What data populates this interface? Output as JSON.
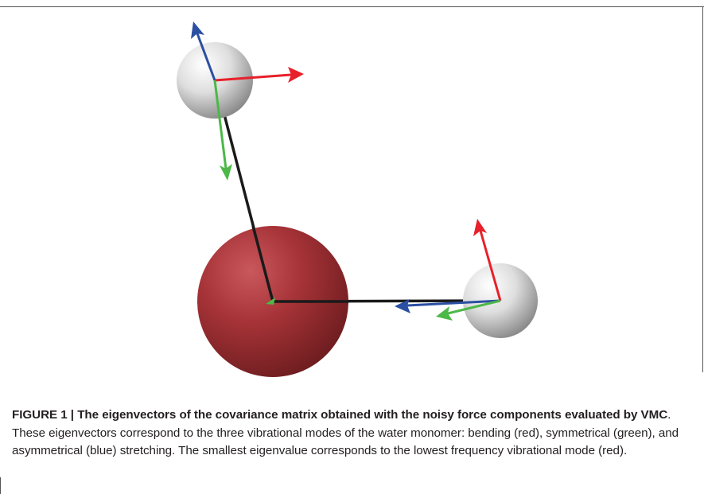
{
  "figure": {
    "label": "FIGURE 1 | ",
    "title": "The eigenvectors of the covariance matrix obtained with the noisy force components evaluated by VMC",
    "body": ". These eigenvectors correspond to the three vibrational modes of the water monomer: bending (red), symmetrical (green), and asymmetrical (blue) stretching. The smallest eigenvalue corresponds to the lowest frequency vibrational mode (red)."
  },
  "colors": {
    "bending": "#e8202a",
    "symmetrical": "#4cb848",
    "asymmetrical": "#2b4fa2",
    "oxygen": "#9e2d30",
    "hydrogen": "#d9d9d9",
    "bond": "#1a1a1a"
  }
}
